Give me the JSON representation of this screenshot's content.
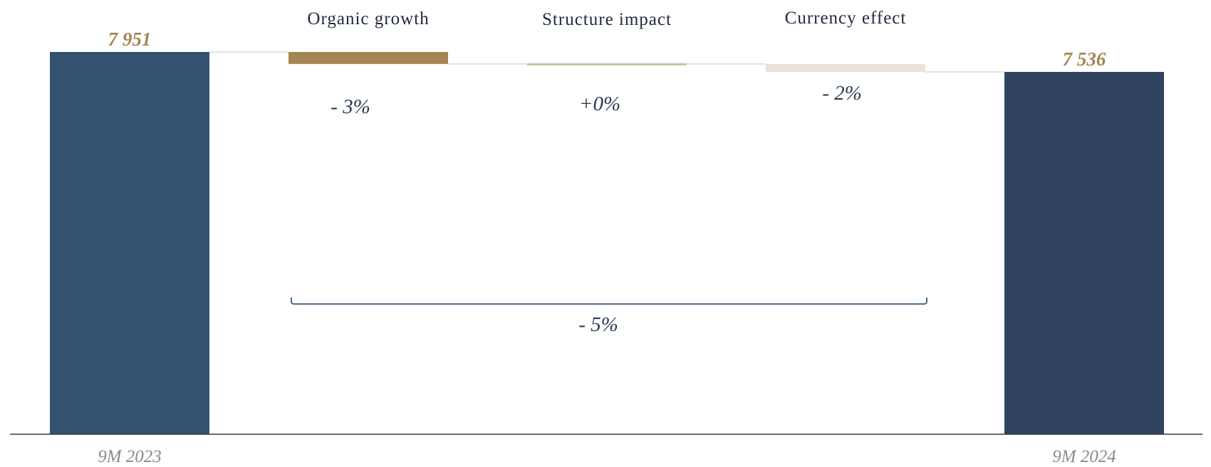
{
  "chart_data": {
    "type": "waterfall",
    "colors": {
      "start_bar": "#355171",
      "end_bar": "#2f435e",
      "organic_growth": "#a48450",
      "structure_impact": "#c9bea0",
      "currency_effect": "#ebe3da",
      "connector": "#d9d9d9",
      "bracket": "#3d5678",
      "axis": "#3a3a3a"
    },
    "start": {
      "category": "9M 2023",
      "value": 7951,
      "value_label": "7 951"
    },
    "steps": [
      {
        "key": "organic_growth",
        "name": "Organic growth",
        "change_pct": -3,
        "label": "- 3%"
      },
      {
        "key": "structure_impact",
        "name": "Structure impact",
        "change_pct": 0,
        "label": "+0%"
      },
      {
        "key": "currency_effect",
        "name": "Currency effect",
        "change_pct": -2,
        "label": "- 2%"
      }
    ],
    "end": {
      "category": "9M 2024",
      "value": 7536,
      "value_label": "7 536"
    },
    "total_change": {
      "change_pct": -5,
      "label": "- 5%"
    },
    "ylim": [
      0,
      7951
    ]
  }
}
